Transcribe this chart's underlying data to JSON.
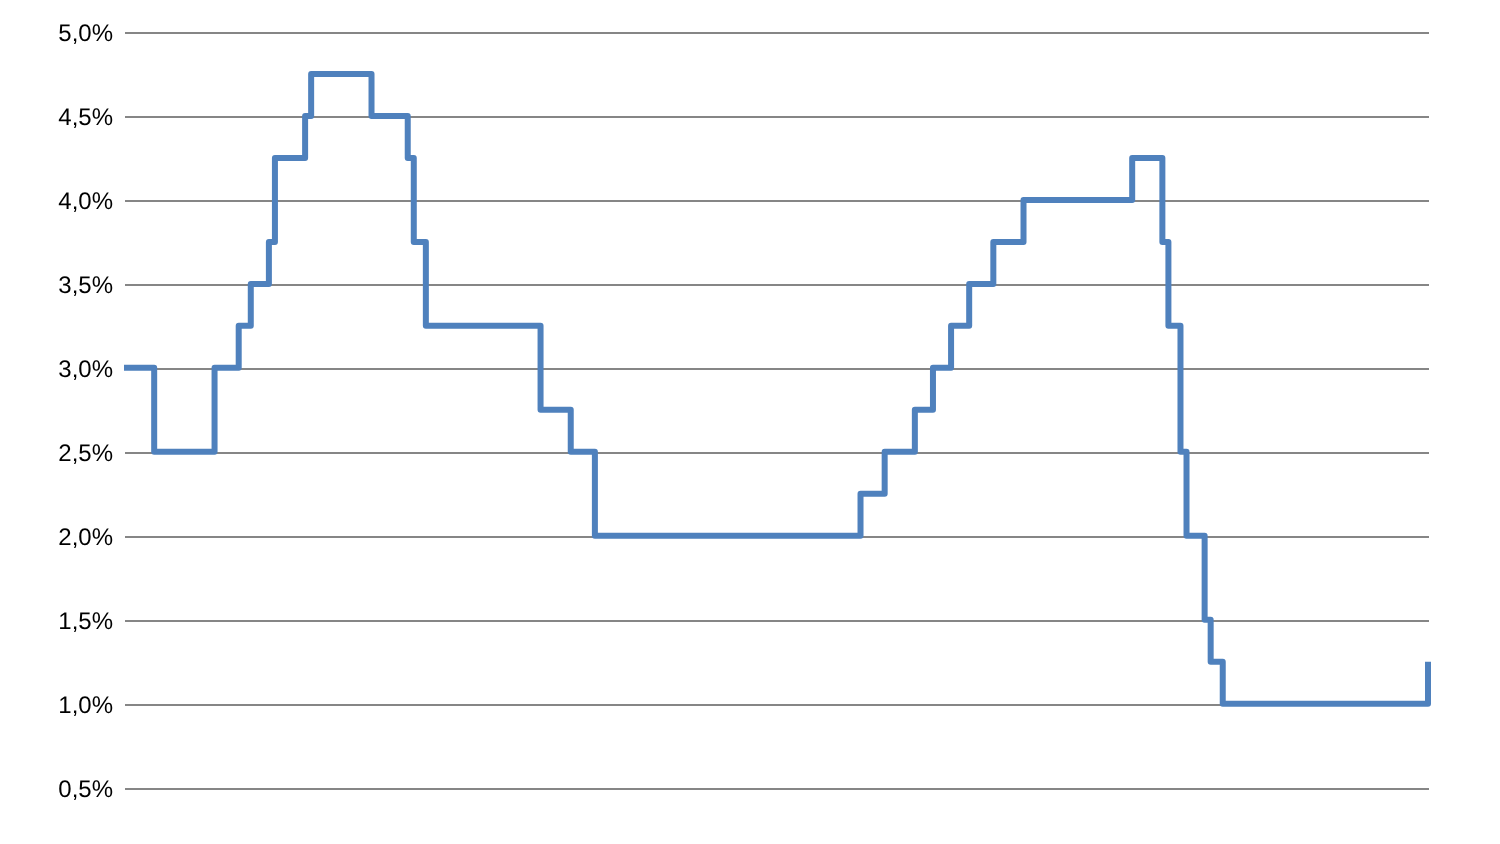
{
  "chart_data": {
    "type": "step",
    "categories": [
      null,
      null,
      null,
      null,
      null,
      null,
      null,
      null,
      null,
      null,
      null,
      null,
      null,
      null,
      null,
      null,
      null,
      null,
      null,
      null,
      null,
      null,
      null,
      null,
      null,
      null,
      null,
      null,
      null,
      null,
      null,
      null,
      null,
      null,
      null,
      null,
      null,
      null,
      null,
      null,
      null,
      null,
      null,
      null,
      null,
      null,
      null,
      null,
      null,
      null,
      null,
      null,
      null,
      null,
      null,
      null,
      null,
      null,
      null,
      null,
      null,
      null,
      null,
      null,
      null,
      null,
      null,
      null,
      null,
      null,
      null,
      null,
      null,
      null,
      null,
      null,
      null,
      null,
      null,
      null,
      null,
      null,
      null,
      null,
      null,
      null,
      null,
      null,
      null,
      null,
      null,
      null,
      null,
      null,
      null,
      null,
      null,
      null,
      null,
      null,
      null,
      null,
      null,
      null,
      null,
      null,
      null,
      null,
      null,
      null,
      null,
      null,
      null,
      null,
      null,
      null,
      null,
      null,
      null,
      null,
      null,
      null,
      null,
      null,
      null,
      null,
      null,
      null,
      null,
      null,
      null,
      null,
      null,
      null,
      null,
      null,
      null,
      null,
      null,
      null,
      null,
      null,
      null,
      null,
      null,
      null,
      null,
      null,
      null,
      null,
      null,
      null,
      null,
      null,
      null,
      null,
      null,
      null,
      null,
      null,
      null,
      null,
      null,
      null,
      null,
      null,
      null,
      null,
      null,
      null,
      null,
      null,
      null,
      null,
      null,
      null,
      null,
      null,
      null,
      null,
      null,
      null,
      null,
      null,
      null,
      null,
      null,
      null,
      null,
      null,
      null,
      null,
      null,
      null,
      null,
      null,
      null,
      null,
      null,
      null,
      null,
      null,
      null,
      null,
      null,
      null,
      null,
      null,
      null,
      null,
      null,
      null,
      null,
      null,
      null,
      null,
      null
    ],
    "series": [
      {
        "color": "#4f81bd",
        "values": [
          3.0,
          3.0,
          3.0,
          3.0,
          3.0,
          2.5,
          2.5,
          2.5,
          2.5,
          2.5,
          2.5,
          2.5,
          2.5,
          2.5,
          2.5,
          3.0,
          3.0,
          3.0,
          3.0,
          3.25,
          3.25,
          3.5,
          3.5,
          3.5,
          3.75,
          4.25,
          4.25,
          4.25,
          4.25,
          4.25,
          4.5,
          4.75,
          4.75,
          4.75,
          4.75,
          4.75,
          4.75,
          4.75,
          4.75,
          4.75,
          4.75,
          4.5,
          4.5,
          4.5,
          4.5,
          4.5,
          4.5,
          4.25,
          3.75,
          3.75,
          3.25,
          3.25,
          3.25,
          3.25,
          3.25,
          3.25,
          3.25,
          3.25,
          3.25,
          3.25,
          3.25,
          3.25,
          3.25,
          3.25,
          3.25,
          3.25,
          3.25,
          3.25,
          3.25,
          2.75,
          2.75,
          2.75,
          2.75,
          2.75,
          2.5,
          2.5,
          2.5,
          2.5,
          2.0,
          2.0,
          2.0,
          2.0,
          2.0,
          2.0,
          2.0,
          2.0,
          2.0,
          2.0,
          2.0,
          2.0,
          2.0,
          2.0,
          2.0,
          2.0,
          2.0,
          2.0,
          2.0,
          2.0,
          2.0,
          2.0,
          2.0,
          2.0,
          2.0,
          2.0,
          2.0,
          2.0,
          2.0,
          2.0,
          2.0,
          2.0,
          2.0,
          2.0,
          2.0,
          2.0,
          2.0,
          2.0,
          2.0,
          2.0,
          2.0,
          2.0,
          2.0,
          2.0,
          2.25,
          2.25,
          2.25,
          2.25,
          2.5,
          2.5,
          2.5,
          2.5,
          2.5,
          2.75,
          2.75,
          2.75,
          3.0,
          3.0,
          3.0,
          3.25,
          3.25,
          3.25,
          3.5,
          3.5,
          3.5,
          3.5,
          3.75,
          3.75,
          3.75,
          3.75,
          3.75,
          4.0,
          4.0,
          4.0,
          4.0,
          4.0,
          4.0,
          4.0,
          4.0,
          4.0,
          4.0,
          4.0,
          4.0,
          4.0,
          4.0,
          4.0,
          4.0,
          4.0,
          4.0,
          4.25,
          4.25,
          4.25,
          4.25,
          4.25,
          3.75,
          3.25,
          3.25,
          2.5,
          2.0,
          2.0,
          2.0,
          1.5,
          1.25,
          1.25,
          1.0,
          1.0,
          1.0,
          1.0,
          1.0,
          1.0,
          1.0,
          1.0,
          1.0,
          1.0,
          1.0,
          1.0,
          1.0,
          1.0,
          1.0,
          1.0,
          1.0,
          1.0,
          1.0,
          1.0,
          1.0,
          1.0,
          1.0,
          1.0,
          1.0,
          1.0,
          1.0,
          1.0,
          1.0,
          1.0,
          1.0,
          1.0,
          1.0,
          1.0,
          1.25
        ]
      }
    ],
    "ylim": [
      0.2,
      5.0
    ],
    "yticks": [
      {
        "value": 0.5,
        "label": "0,5%"
      },
      {
        "value": 1.0,
        "label": "1,0%"
      },
      {
        "value": 1.5,
        "label": "1,5%"
      },
      {
        "value": 2.0,
        "label": "2,0%"
      },
      {
        "value": 2.5,
        "label": "2,5%"
      },
      {
        "value": 3.0,
        "label": "3,0%"
      },
      {
        "value": 3.5,
        "label": "3,5%"
      },
      {
        "value": 4.0,
        "label": "4,0%"
      },
      {
        "value": 4.5,
        "label": "4,5%"
      },
      {
        "value": 5.0,
        "label": "5,0%"
      }
    ],
    "grid": "y",
    "tick_labels": "y",
    "line_style": "solid"
  }
}
